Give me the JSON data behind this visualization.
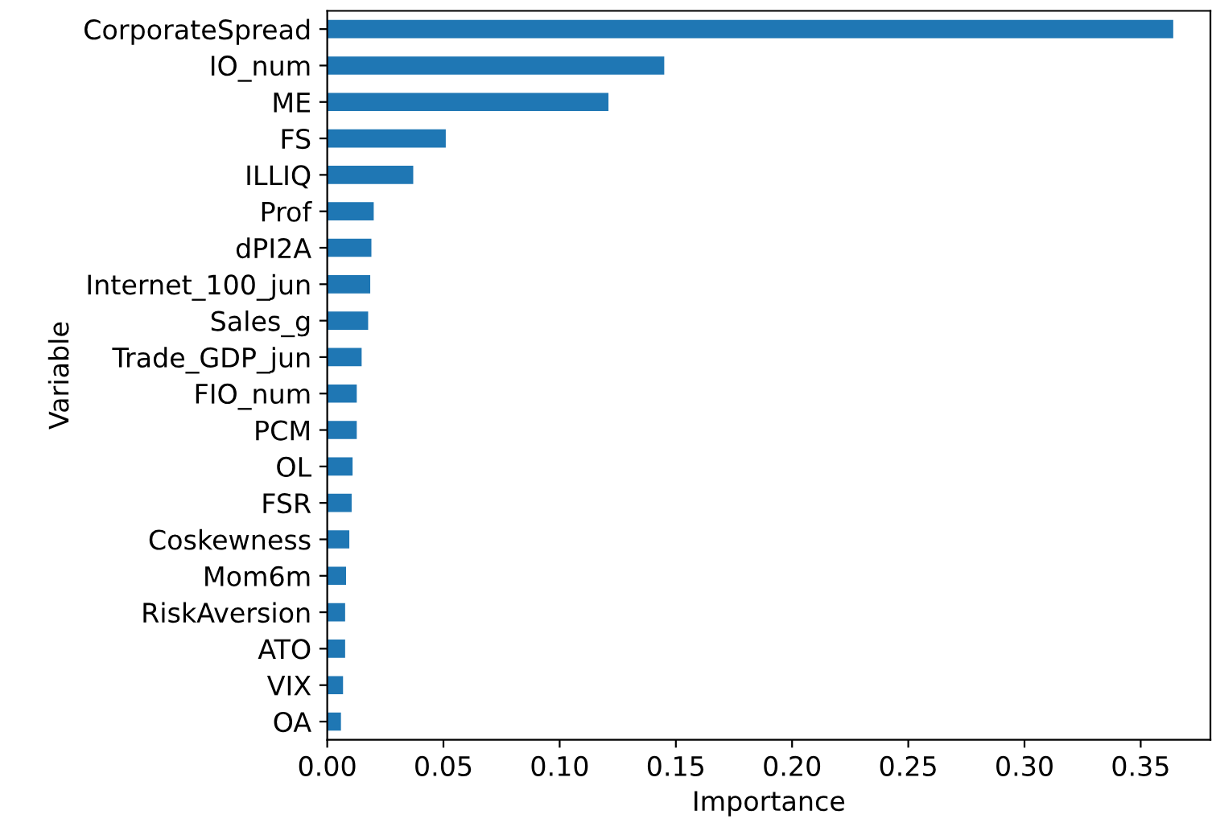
{
  "chart_data": {
    "type": "bar",
    "orientation": "horizontal",
    "xlabel": "Importance",
    "ylabel": "Variable",
    "categories": [
      "CorporateSpread",
      "IO_num",
      "ME",
      "FS",
      "ILLIQ",
      "Prof",
      "dPI2A",
      "Internet_100_jun",
      "Sales_g",
      "Trade_GDP_jun",
      "FIO_num",
      "PCM",
      "OL",
      "FSR",
      "Coskewness",
      "Mom6m",
      "RiskAversion",
      "ATO",
      "VIX",
      "OA"
    ],
    "values": [
      0.364,
      0.145,
      0.121,
      0.051,
      0.037,
      0.02,
      0.019,
      0.0185,
      0.0176,
      0.0148,
      0.0127,
      0.0127,
      0.0109,
      0.0105,
      0.0095,
      0.0081,
      0.0077,
      0.0077,
      0.0068,
      0.0059
    ],
    "color": "#1f77b4",
    "xlim": [
      0,
      0.38
    ],
    "xticks": [
      {
        "value": 0,
        "label": "0.00"
      },
      0.05,
      {
        "value": 0.1,
        "label": "0.10"
      },
      0.15,
      {
        "value": 0.2,
        "label": "0.20"
      },
      0.25,
      {
        "value": 0.3,
        "label": "0.30"
      },
      0.35
    ],
    "grid": false,
    "legend": false
  }
}
